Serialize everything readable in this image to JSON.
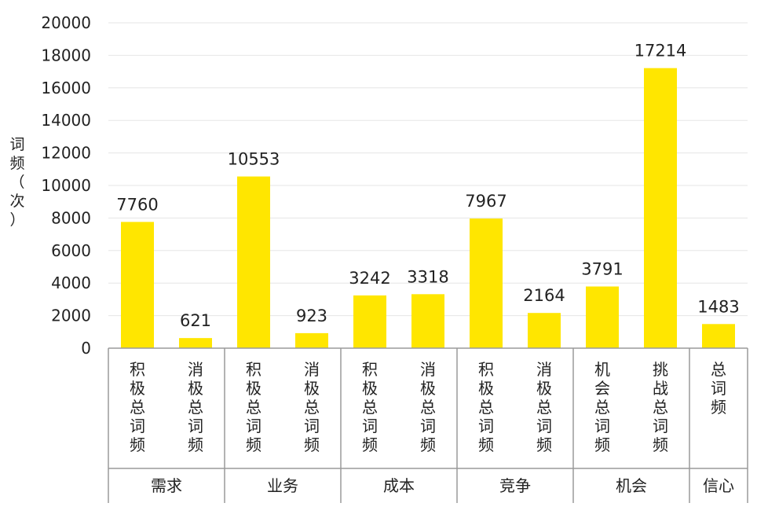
{
  "chart_data": {
    "type": "bar",
    "ylabel": "词频（次）",
    "ylim": [
      0,
      20000
    ],
    "yticks": [
      0,
      2000,
      4000,
      6000,
      8000,
      10000,
      12000,
      14000,
      16000,
      18000,
      20000
    ],
    "grid": true,
    "bar_color": "#FFE600",
    "categories": [
      "积极总词频",
      "消极总词频",
      "积极总词频",
      "消极总词频",
      "积极总词频",
      "消极总词频",
      "积极总词频",
      "消极总词频",
      "机会总词频",
      "挑战总词频",
      "总词频"
    ],
    "values": [
      7760,
      621,
      10553,
      923,
      3242,
      3318,
      7967,
      2164,
      3791,
      17214,
      1483
    ],
    "groups": [
      {
        "name": "需求",
        "size": 2
      },
      {
        "name": "业务",
        "size": 2
      },
      {
        "name": "成本",
        "size": 2
      },
      {
        "name": "竞争",
        "size": 2
      },
      {
        "name": "机会",
        "size": 2
      },
      {
        "name": "信心",
        "size": 1
      }
    ]
  }
}
